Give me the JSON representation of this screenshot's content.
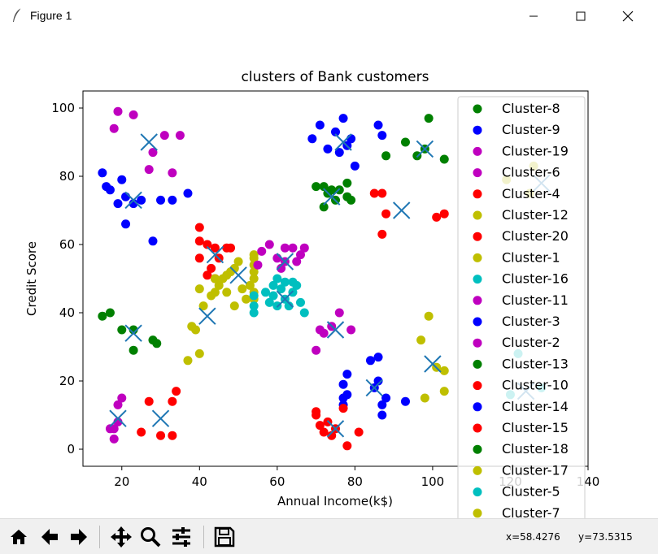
{
  "window": {
    "title": "Figure 1"
  },
  "toolbar": {
    "coord_x": "x=58.4276",
    "coord_y": "y=73.5315"
  },
  "chart_data": {
    "type": "scatter",
    "title": "clusters of Bank customers",
    "xlabel": "Annual Income(k$)",
    "ylabel": "Credit Score",
    "xlim": [
      10,
      140
    ],
    "ylim": [
      -5,
      105
    ],
    "xticks": [
      20,
      40,
      60,
      80,
      100,
      120,
      140
    ],
    "yticks": [
      0,
      20,
      40,
      60,
      80,
      100
    ],
    "legend_position": "right",
    "colors": {
      "g": "#008000",
      "b": "#0000ff",
      "m": "#bf00bf",
      "r": "#ff0000",
      "y": "#bfbf00",
      "c": "#00bfbf",
      "centroid": "#1f77b4"
    },
    "series": [
      {
        "name": "Cluster-8",
        "color": "g",
        "points": [
          [
            96,
            86
          ],
          [
            98,
            88
          ],
          [
            99,
            97
          ],
          [
            93,
            90
          ],
          [
            103,
            85
          ],
          [
            88,
            86
          ]
        ]
      },
      {
        "name": "Cluster-9",
        "color": "b",
        "points": [
          [
            69,
            91
          ],
          [
            71,
            95
          ],
          [
            73,
            88
          ],
          [
            75,
            93
          ],
          [
            76,
            87
          ],
          [
            77,
            97
          ],
          [
            78,
            89
          ],
          [
            79,
            91
          ],
          [
            80,
            83
          ],
          [
            86,
            95
          ],
          [
            87,
            92
          ]
        ]
      },
      {
        "name": "Cluster-19",
        "color": "m",
        "points": [
          [
            18,
            94
          ],
          [
            19,
            99
          ],
          [
            23,
            98
          ],
          [
            28,
            87
          ],
          [
            27,
            82
          ],
          [
            31,
            92
          ],
          [
            35,
            92
          ],
          [
            33,
            81
          ]
        ]
      },
      {
        "name": "Cluster-6",
        "color": "m",
        "points": [
          [
            71,
            35
          ],
          [
            72,
            34
          ],
          [
            76,
            40
          ],
          [
            79,
            35
          ],
          [
            70,
            29
          ],
          [
            74,
            36
          ]
        ]
      },
      {
        "name": "Cluster-4",
        "color": "r",
        "points": [
          [
            85,
            75
          ],
          [
            87,
            75
          ],
          [
            88,
            69
          ],
          [
            87,
            63
          ],
          [
            101,
            68
          ],
          [
            103,
            69
          ]
        ]
      },
      {
        "name": "Cluster-12",
        "color": "y",
        "points": [
          [
            97,
            32
          ],
          [
            99,
            39
          ],
          [
            98,
            15
          ],
          [
            101,
            24
          ],
          [
            103,
            23
          ],
          [
            103,
            17
          ],
          [
            119,
            79
          ],
          [
            125,
            75
          ],
          [
            126,
            83
          ]
        ]
      },
      {
        "name": "Cluster-20",
        "color": "r",
        "points": [
          [
            40,
            65
          ],
          [
            42,
            60
          ],
          [
            44,
            59
          ],
          [
            40,
            56
          ],
          [
            43,
            53
          ],
          [
            44,
            50
          ],
          [
            47,
            59
          ],
          [
            45,
            56
          ],
          [
            48,
            59
          ],
          [
            42,
            51
          ],
          [
            40,
            61
          ]
        ]
      },
      {
        "name": "Cluster-1",
        "color": "y",
        "points": [
          [
            40,
            47
          ],
          [
            41,
            42
          ],
          [
            43,
            45
          ],
          [
            44,
            46
          ],
          [
            45,
            48
          ],
          [
            46,
            50
          ],
          [
            47,
            51
          ],
          [
            48,
            52
          ],
          [
            49,
            53
          ],
          [
            50,
            55
          ],
          [
            44,
            50
          ],
          [
            47,
            46
          ],
          [
            49,
            42
          ],
          [
            51,
            47
          ],
          [
            53,
            48
          ],
          [
            54,
            50
          ],
          [
            54,
            52
          ],
          [
            54,
            54
          ],
          [
            54,
            56
          ],
          [
            54,
            57
          ],
          [
            54,
            46
          ],
          [
            54,
            44
          ],
          [
            52,
            44
          ],
          [
            39,
            35
          ],
          [
            38,
            36
          ],
          [
            40,
            28
          ],
          [
            37,
            26
          ]
        ]
      },
      {
        "name": "Cluster-16",
        "color": "c",
        "points": [
          [
            54,
            40
          ],
          [
            54,
            42
          ],
          [
            57,
            46
          ],
          [
            58,
            43
          ],
          [
            59,
            48
          ],
          [
            60,
            50
          ],
          [
            61,
            47
          ],
          [
            62,
            44
          ],
          [
            63,
            42
          ],
          [
            64,
            46
          ],
          [
            65,
            48
          ],
          [
            66,
            43
          ],
          [
            67,
            40
          ],
          [
            60,
            42
          ],
          [
            62,
            49
          ],
          [
            59,
            45
          ],
          [
            54,
            45
          ],
          [
            64,
            49
          ],
          [
            122,
            28
          ],
          [
            128,
            18
          ],
          [
            120,
            16
          ]
        ]
      },
      {
        "name": "Cluster-11",
        "color": "m",
        "points": [
          [
            56,
            58
          ],
          [
            58,
            60
          ],
          [
            60,
            56
          ],
          [
            62,
            59
          ],
          [
            64,
            59
          ],
          [
            66,
            57
          ],
          [
            67,
            59
          ],
          [
            61,
            53
          ],
          [
            65,
            55
          ],
          [
            55,
            54
          ],
          [
            62,
            55
          ]
        ]
      },
      {
        "name": "Cluster-3",
        "color": "b",
        "points": [
          [
            20,
            79
          ],
          [
            21,
            74
          ],
          [
            23,
            72
          ],
          [
            25,
            73
          ],
          [
            30,
            73
          ],
          [
            33,
            73
          ],
          [
            37,
            75
          ],
          [
            28,
            61
          ],
          [
            21,
            66
          ],
          [
            16,
            77
          ],
          [
            17,
            76
          ],
          [
            15,
            81
          ],
          [
            19,
            72
          ]
        ]
      },
      {
        "name": "Cluster-2",
        "color": "m",
        "points": [
          [
            17,
            6
          ],
          [
            19,
            8
          ],
          [
            18,
            3
          ],
          [
            19,
            13
          ],
          [
            20,
            15
          ],
          [
            18,
            6
          ]
        ]
      },
      {
        "name": "Cluster-13",
        "color": "g",
        "points": [
          [
            15,
            39
          ],
          [
            17,
            40
          ],
          [
            20,
            35
          ],
          [
            23,
            35
          ],
          [
            23,
            29
          ],
          [
            28,
            32
          ],
          [
            29,
            31
          ],
          [
            72,
            77
          ],
          [
            73,
            75
          ],
          [
            74,
            76
          ],
          [
            75,
            73
          ],
          [
            78,
            74
          ],
          [
            78,
            78
          ],
          [
            72,
            71
          ],
          [
            79,
            73
          ],
          [
            76,
            76
          ],
          [
            70,
            77
          ]
        ]
      },
      {
        "name": "Cluster-10",
        "color": "r",
        "points": [
          [
            27,
            14
          ],
          [
            33,
            14
          ],
          [
            34,
            17
          ],
          [
            30,
            4
          ],
          [
            33,
            4
          ],
          [
            25,
            5
          ]
        ]
      },
      {
        "name": "Cluster-14",
        "color": "b",
        "points": [
          [
            77,
            19
          ],
          [
            78,
            16
          ],
          [
            78,
            22
          ],
          [
            77,
            15
          ],
          [
            84,
            26
          ],
          [
            86,
            27
          ],
          [
            86,
            20
          ],
          [
            87,
            13
          ],
          [
            88,
            15
          ],
          [
            87,
            10
          ],
          [
            93,
            14
          ],
          [
            85,
            18
          ],
          [
            77,
            13
          ]
        ]
      },
      {
        "name": "Cluster-15",
        "color": "r",
        "points": [
          [
            70,
            11
          ],
          [
            71,
            7
          ],
          [
            72,
            5
          ],
          [
            73,
            8
          ],
          [
            75,
            6
          ],
          [
            77,
            12
          ],
          [
            78,
            1
          ],
          [
            81,
            5
          ],
          [
            70,
            10
          ],
          [
            74,
            4
          ]
        ]
      },
      {
        "name": "Cluster-18",
        "color": "g",
        "points": []
      },
      {
        "name": "Cluster-17",
        "color": "y",
        "points": []
      },
      {
        "name": "Cluster-5",
        "color": "c",
        "points": []
      },
      {
        "name": "Cluster-7",
        "color": "y",
        "points": []
      }
    ],
    "centroids": [
      [
        27,
        90
      ],
      [
        23,
        73
      ],
      [
        19,
        9
      ],
      [
        30,
        9
      ],
      [
        23,
        34
      ],
      [
        42,
        39
      ],
      [
        44,
        57
      ],
      [
        50,
        51
      ],
      [
        62,
        55
      ],
      [
        62,
        44
      ],
      [
        74,
        74
      ],
      [
        77,
        90
      ],
      [
        75,
        35
      ],
      [
        75,
        6
      ],
      [
        85,
        18
      ],
      [
        92,
        70
      ],
      [
        98,
        88
      ],
      [
        100,
        25
      ],
      [
        124,
        17
      ],
      [
        128,
        78
      ]
    ]
  }
}
